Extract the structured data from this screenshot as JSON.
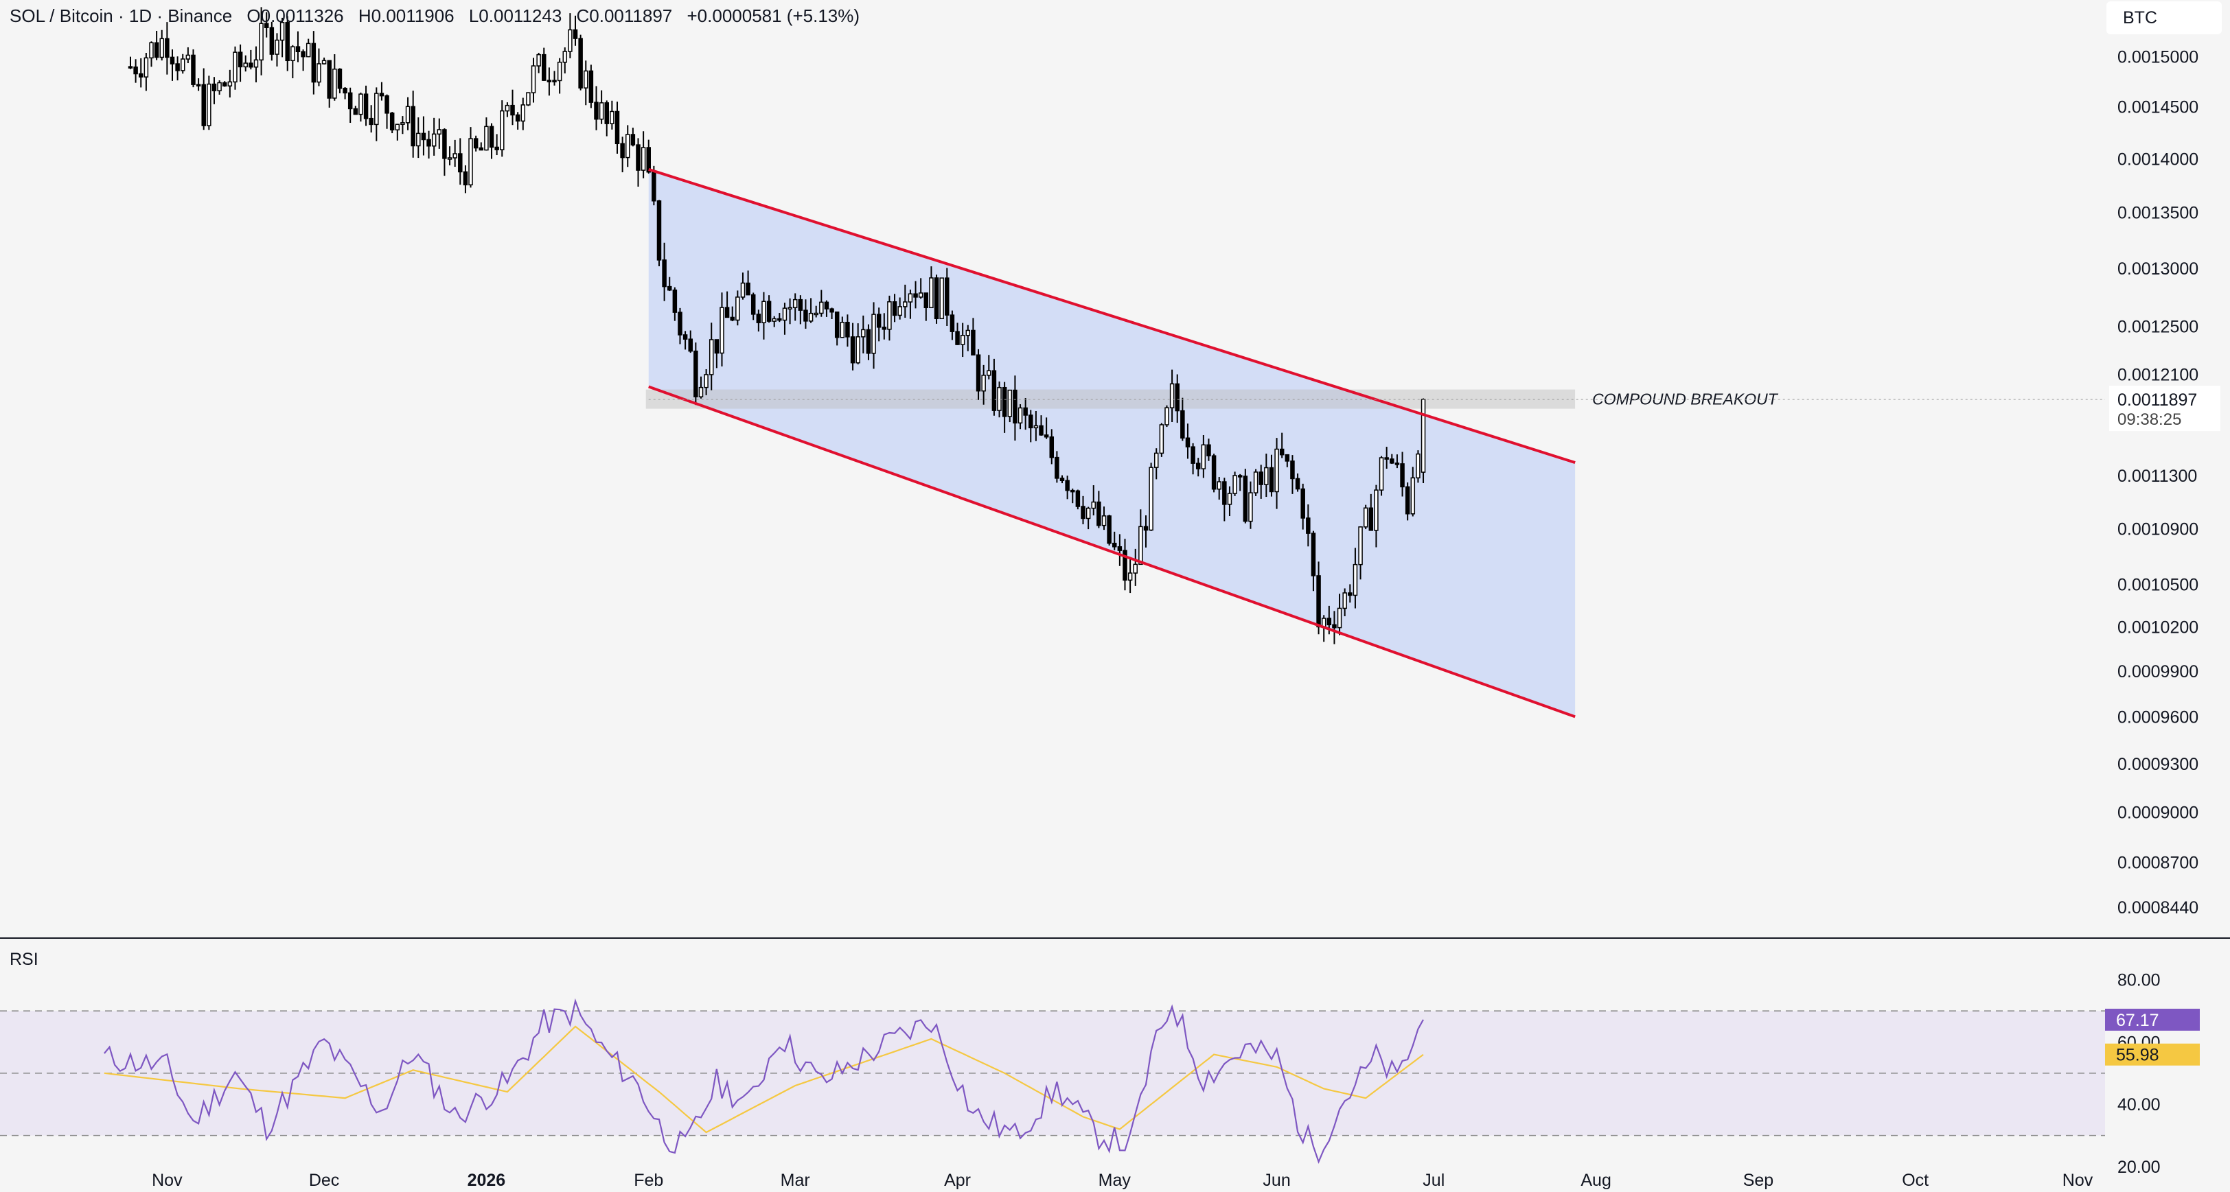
{
  "header": {
    "symbol": "SOL / Bitcoin · 1D · Binance",
    "open": "O0.0011326",
    "high": "H0.0011906",
    "low": "L0.0011243",
    "close": "C0.0011897",
    "change": "+0.0000581 (+5.13%)"
  },
  "currency_label": "BTC",
  "price_axis": {
    "ticks": [
      "0.0015000",
      "0.0014500",
      "0.0014000",
      "0.0013500",
      "0.0013000",
      "0.0012500",
      "0.0012100",
      "0.0011300",
      "0.0010900",
      "0.0010500",
      "0.0010200",
      "0.0009900",
      "0.0009600",
      "0.0009300",
      "0.0009000",
      "0.0008700",
      "0.0008440"
    ],
    "last_price": "0.0011897",
    "countdown": "09:38:25"
  },
  "time_axis": {
    "labels": [
      "Nov",
      "Dec",
      "2026",
      "Feb",
      "Mar",
      "Apr",
      "May",
      "Jun",
      "Jul",
      "Aug",
      "Sep",
      "Oct",
      "Nov"
    ]
  },
  "annotation": {
    "text": "COMPOUND BREAKOUT"
  },
  "rsi": {
    "title": "RSI",
    "ticks": [
      "80.00",
      "60.00",
      "40.00",
      "20.00"
    ],
    "value_label": "67.17",
    "ma_label": "55.98"
  },
  "colors": {
    "background": "#f5f5f5",
    "channel_line": "#e0102f",
    "channel_fill": "#d1dbf5",
    "candle": "#000000",
    "rsi_line": "#7e57c2",
    "rsi_ma": "#f5c842",
    "rsi_band": "#ebe7f3"
  },
  "chart_data": [
    {
      "type": "candlestick",
      "title": "SOL / Bitcoin · 1D · Binance",
      "scale": "log",
      "ylim": [
        0.000835,
        0.00153
      ],
      "x_labels": [
        "Nov",
        "Dec",
        "2026",
        "Feb",
        "Mar",
        "Apr",
        "May",
        "Jun",
        "Jul",
        "Aug",
        "Sep",
        "Oct",
        "Nov"
      ],
      "close_path": [
        [
          "2025-10-25",
          0.00149
        ],
        [
          "2025-11-01",
          0.00152
        ],
        [
          "2025-11-08",
          0.00145
        ],
        [
          "2025-11-15",
          0.00149
        ],
        [
          "2025-11-22",
          0.00153
        ],
        [
          "2025-11-29",
          0.00149
        ],
        [
          "2025-12-06",
          0.00146
        ],
        [
          "2025-12-13",
          0.00145
        ],
        [
          "2025-12-20",
          0.00142
        ],
        [
          "2025-12-27",
          0.00139
        ],
        [
          "2026-01-03",
          0.00142
        ],
        [
          "2026-01-10",
          0.00148
        ],
        [
          "2026-01-17",
          0.00151
        ],
        [
          "2026-01-24",
          0.00143
        ],
        [
          "2026-01-31",
          0.0014
        ],
        [
          "2026-02-04",
          0.00129
        ],
        [
          "2026-02-10",
          0.00121
        ],
        [
          "2026-02-18",
          0.00127
        ],
        [
          "2026-02-26",
          0.00127
        ],
        [
          "2026-03-06",
          0.00126
        ],
        [
          "2026-03-14",
          0.00123
        ],
        [
          "2026-03-22",
          0.00129
        ],
        [
          "2026-03-30",
          0.00127
        ],
        [
          "2026-04-06",
          0.0012
        ],
        [
          "2026-04-14",
          0.00117
        ],
        [
          "2026-04-22",
          0.00113
        ],
        [
          "2026-04-30",
          0.00108
        ],
        [
          "2026-05-04",
          0.00105
        ],
        [
          "2026-05-08",
          0.00112
        ],
        [
          "2026-05-12",
          0.00119
        ],
        [
          "2026-05-18",
          0.00114
        ],
        [
          "2026-05-26",
          0.00111
        ],
        [
          "2026-06-02",
          0.00114
        ],
        [
          "2026-06-06",
          0.00111
        ],
        [
          "2026-06-09",
          0.00102
        ],
        [
          "2026-06-14",
          0.00104
        ],
        [
          "2026-06-18",
          0.00109
        ],
        [
          "2026-06-22",
          0.00115
        ],
        [
          "2026-06-26",
          0.00111
        ],
        [
          "2026-06-29",
          0.0011897
        ]
      ],
      "last": {
        "open": 0.0011326,
        "high": 0.0011906,
        "low": 0.0011243,
        "close": 0.0011897
      },
      "channel": {
        "upper": [
          [
            "2026-02-01",
            0.00139
          ],
          [
            "2026-07-28",
            0.00114
          ]
        ],
        "lower": [
          [
            "2026-02-01",
            0.0012
          ],
          [
            "2026-07-28",
            0.00096
          ]
        ]
      },
      "breakout_level": 0.00119,
      "annotation": "COMPOUND BREAKOUT"
    },
    {
      "type": "line",
      "title": "RSI",
      "ylim": [
        20,
        85
      ],
      "bands": [
        30,
        50,
        70
      ],
      "series": [
        {
          "values": [
            [
              "2025-10-20",
              55
            ],
            [
              "2025-11-01",
              52
            ],
            [
              "2025-11-06",
              34
            ],
            [
              "2025-11-14",
              50
            ],
            [
              "2025-11-20",
              33
            ],
            [
              "2025-12-01",
              60
            ],
            [
              "2025-12-12",
              38
            ],
            [
              "2025-12-18",
              57
            ],
            [
              "2025-12-26",
              36
            ],
            [
              "2026-01-05",
              47
            ],
            [
              "2026-01-12",
              66
            ],
            [
              "2026-01-18",
              70
            ],
            [
              "2026-01-23",
              58
            ],
            [
              "2026-01-30",
              46
            ],
            [
              "2026-02-04",
              30
            ],
            [
              "2026-02-08",
              26
            ],
            [
              "2026-02-14",
              47
            ],
            [
              "2026-02-20",
              40
            ],
            [
              "2026-02-26",
              62
            ],
            [
              "2026-03-06",
              47
            ],
            [
              "2026-03-12",
              53
            ],
            [
              "2026-03-20",
              61
            ],
            [
              "2026-03-27",
              67
            ],
            [
              "2026-04-04",
              37
            ],
            [
              "2026-04-12",
              30
            ],
            [
              "2026-04-20",
              45
            ],
            [
              "2026-04-28",
              30
            ],
            [
              "2026-05-04",
              27
            ],
            [
              "2026-05-08",
              55
            ],
            [
              "2026-05-12",
              73
            ],
            [
              "2026-05-18",
              48
            ],
            [
              "2026-05-26",
              58
            ],
            [
              "2026-06-01",
              55
            ],
            [
              "2026-06-06",
              30
            ],
            [
              "2026-06-09",
              26
            ],
            [
              "2026-06-14",
              42
            ],
            [
              "2026-06-20",
              55
            ],
            [
              "2026-06-24",
              48
            ],
            [
              "2026-06-29",
              67.17
            ]
          ]
        },
        {
          "values": [
            [
              "2025-10-20",
              50
            ],
            [
              "2025-11-15",
              45
            ],
            [
              "2025-12-05",
              42
            ],
            [
              "2025-12-18",
              51
            ],
            [
              "2026-01-05",
              44
            ],
            [
              "2026-01-18",
              65
            ],
            [
              "2026-02-03",
              44
            ],
            [
              "2026-02-12",
              31
            ],
            [
              "2026-03-01",
              46
            ],
            [
              "2026-03-27",
              61
            ],
            [
              "2026-04-10",
              50
            ],
            [
              "2026-04-25",
              36
            ],
            [
              "2026-05-02",
              32
            ],
            [
              "2026-05-20",
              56
            ],
            [
              "2026-06-01",
              52
            ],
            [
              "2026-06-10",
              45
            ],
            [
              "2026-06-18",
              42
            ],
            [
              "2026-06-29",
              55.98
            ]
          ]
        }
      ]
    }
  ]
}
